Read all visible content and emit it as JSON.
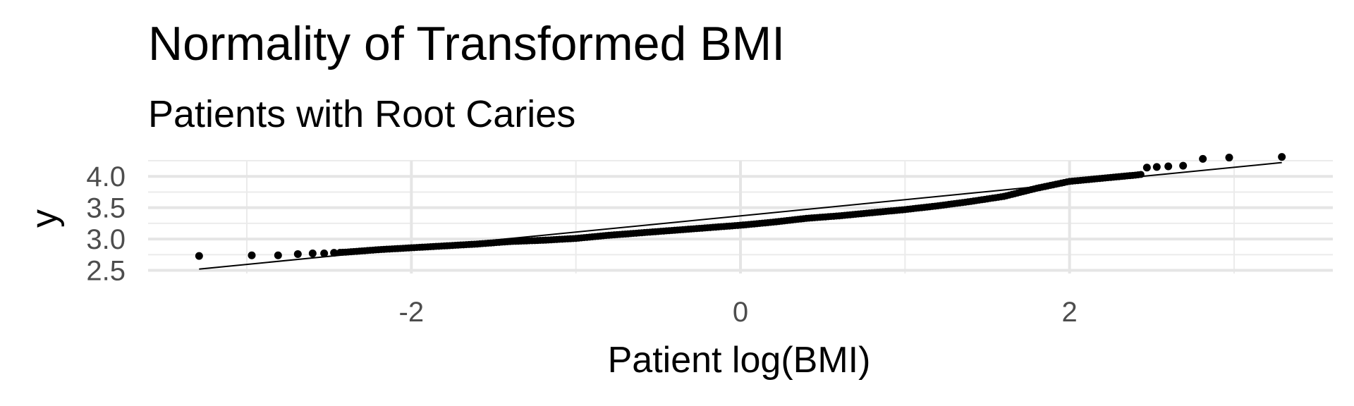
{
  "chart_data": {
    "type": "scatter",
    "title": "Normality of Transformed BMI",
    "subtitle": "Patients with Root Caries",
    "xlabel": "Patient log(BMI)",
    "ylabel": "y",
    "xlim": [
      -3.6,
      3.6
    ],
    "ylim": [
      2.45,
      4.25
    ],
    "x_ticks": [
      -2,
      0,
      2
    ],
    "x_tick_labels": [
      "-2",
      "0",
      "2"
    ],
    "y_ticks": [
      2.5,
      3.0,
      3.5,
      4.0
    ],
    "y_tick_labels": [
      "2.5",
      "3.0",
      "3.5",
      "4.0"
    ],
    "grid": true,
    "reference_line": {
      "x": [
        -3.29,
        3.29
      ],
      "y": [
        2.52,
        4.22
      ]
    },
    "outlier_points": {
      "x": [
        -3.29,
        -2.97,
        -2.81,
        -2.69,
        -2.6,
        -2.53,
        -2.47,
        2.47,
        2.53,
        2.6,
        2.69,
        2.81,
        2.97,
        3.29
      ],
      "y": [
        2.73,
        2.74,
        2.74,
        2.76,
        2.77,
        2.77,
        2.78,
        4.14,
        4.15,
        4.16,
        4.17,
        4.28,
        4.3,
        4.31
      ]
    },
    "points": [
      {
        "x": -3.29,
        "y": 2.73
      },
      {
        "x": -2.4,
        "y": 2.79
      },
      {
        "x": -2.2,
        "y": 2.83
      },
      {
        "x": -2.0,
        "y": 2.86
      },
      {
        "x": -1.8,
        "y": 2.89
      },
      {
        "x": -1.6,
        "y": 2.92
      },
      {
        "x": -1.4,
        "y": 2.96
      },
      {
        "x": -1.2,
        "y": 2.98
      },
      {
        "x": -1.0,
        "y": 3.01
      },
      {
        "x": -0.8,
        "y": 3.06
      },
      {
        "x": -0.6,
        "y": 3.1
      },
      {
        "x": -0.4,
        "y": 3.14
      },
      {
        "x": -0.2,
        "y": 3.18
      },
      {
        "x": 0.0,
        "y": 3.22
      },
      {
        "x": 0.2,
        "y": 3.27
      },
      {
        "x": 0.4,
        "y": 3.33
      },
      {
        "x": 0.6,
        "y": 3.37
      },
      {
        "x": 0.8,
        "y": 3.42
      },
      {
        "x": 1.0,
        "y": 3.47
      },
      {
        "x": 1.2,
        "y": 3.53
      },
      {
        "x": 1.4,
        "y": 3.6
      },
      {
        "x": 1.6,
        "y": 3.68
      },
      {
        "x": 1.8,
        "y": 3.81
      },
      {
        "x": 2.0,
        "y": 3.92
      },
      {
        "x": 2.2,
        "y": 3.97
      },
      {
        "x": 2.4,
        "y": 4.02
      },
      {
        "x": 3.29,
        "y": 4.31
      }
    ]
  }
}
